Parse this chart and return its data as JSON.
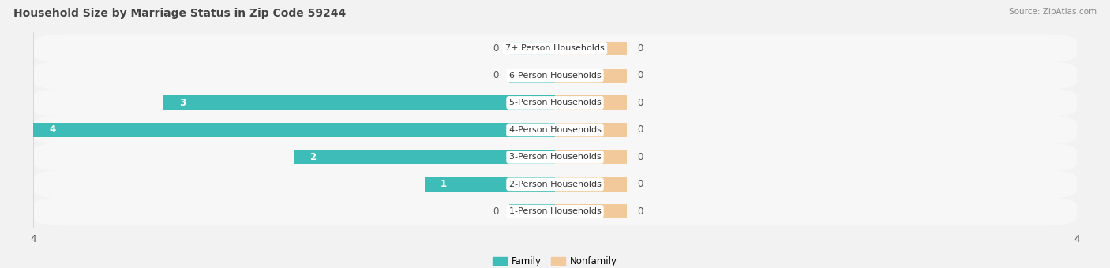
{
  "title": "Household Size by Marriage Status in Zip Code 59244",
  "source": "Source: ZipAtlas.com",
  "categories": [
    "7+ Person Households",
    "6-Person Households",
    "5-Person Households",
    "4-Person Households",
    "3-Person Households",
    "2-Person Households",
    "1-Person Households"
  ],
  "family_values": [
    0,
    0,
    3,
    4,
    2,
    1,
    0
  ],
  "nonfamily_values": [
    0,
    0,
    0,
    0,
    0,
    0,
    0
  ],
  "family_color": "#3DBCB8",
  "nonfamily_color": "#F2C99A",
  "xlim_left": -4,
  "xlim_right": 4,
  "bg_color": "#f2f2f2",
  "row_bg_color": "#e8e8e8",
  "row_bg_light": "#f7f7f7",
  "label_bg": "#ffffff",
  "title_fontsize": 10,
  "source_fontsize": 7.5,
  "tick_fontsize": 8.5,
  "label_fontsize": 8,
  "bar_height": 0.52,
  "nonfamily_stub": 0.55,
  "family_stub": 0.35
}
